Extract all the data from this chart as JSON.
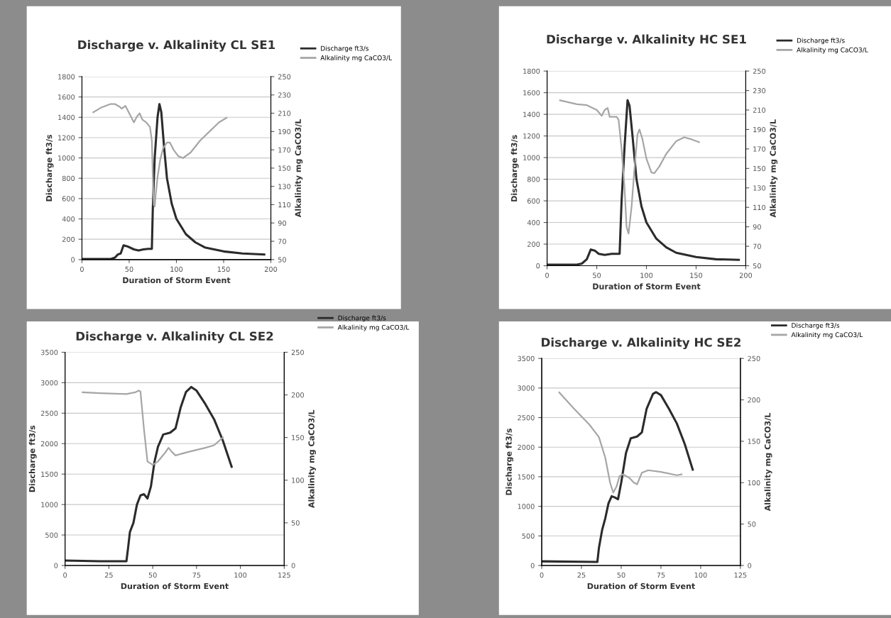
{
  "chart_data": [
    {
      "type": "line",
      "title": "Discharge v. Alkalinity CL SE1",
      "xlabel": "Duration of Storm Event",
      "ylabel": "Discharge ft3/s",
      "y2label": "Alkalinity mg CaCO3/L",
      "xlim": [
        0,
        200
      ],
      "xticks": [
        0,
        50,
        100,
        150,
        200
      ],
      "ylim": [
        0,
        1800
      ],
      "yticks": [
        0,
        200,
        400,
        600,
        800,
        1000,
        1200,
        1400,
        1600,
        1800
      ],
      "y2lim": [
        50,
        250
      ],
      "y2ticks": [
        50,
        70,
        90,
        110,
        130,
        150,
        170,
        190,
        210,
        230,
        250
      ],
      "grid": "y",
      "legend": "top right",
      "line_style": "solid",
      "series": [
        {
          "name": "Discharge ft3/s",
          "color": "#2b2b2b",
          "x": [
            0,
            30,
            35,
            38,
            41,
            44,
            48,
            55,
            60,
            65,
            70,
            74,
            75,
            77,
            80,
            82,
            84,
            87,
            90,
            95,
            100,
            110,
            120,
            130,
            150,
            170,
            193
          ],
          "values": [
            5,
            5,
            20,
            50,
            60,
            140,
            130,
            100,
            90,
            100,
            105,
            105,
            500,
            1000,
            1400,
            1530,
            1450,
            1100,
            800,
            550,
            400,
            250,
            170,
            120,
            80,
            60,
            50
          ]
        },
        {
          "name": "Alkalinity mg CaCO3/L",
          "color": "#a6a6a6",
          "axis": "y2",
          "x": [
            12,
            20,
            30,
            35,
            40,
            42,
            46,
            50,
            55,
            58,
            61,
            64,
            68,
            72,
            74,
            75,
            76,
            77,
            78,
            80,
            83,
            86,
            90,
            93,
            97,
            102,
            107,
            115,
            125,
            135,
            145,
            153
          ],
          "values": [
            211,
            216,
            220,
            220,
            217,
            215,
            218,
            210,
            200,
            206,
            210,
            203,
            200,
            195,
            180,
            140,
            110,
            108,
            120,
            140,
            160,
            172,
            178,
            178,
            170,
            163,
            161,
            167,
            180,
            190,
            200,
            205
          ]
        }
      ]
    },
    {
      "type": "line",
      "title": "Discharge v. Alkalinity HC SE1",
      "xlabel": "Duration of Storm Event",
      "ylabel": "Discharge ft3/s",
      "y2label": "Alkalinity mg CaCO3/L",
      "xlim": [
        0,
        200
      ],
      "xticks": [
        0,
        50,
        100,
        150,
        200
      ],
      "ylim": [
        0,
        1800
      ],
      "yticks": [
        0,
        200,
        400,
        600,
        800,
        1000,
        1200,
        1400,
        1600,
        1800
      ],
      "y2lim": [
        50,
        250
      ],
      "y2ticks": [
        50,
        70,
        90,
        110,
        130,
        150,
        170,
        190,
        210,
        230,
        250
      ],
      "grid": "y",
      "legend": "top right",
      "line_style": "solid",
      "series": [
        {
          "name": "Discharge ft3/s",
          "color": "#2b2b2b",
          "x": [
            0,
            30,
            35,
            40,
            44,
            48,
            52,
            58,
            65,
            73,
            75,
            78,
            81,
            83,
            86,
            90,
            95,
            100,
            110,
            120,
            130,
            150,
            170,
            193
          ],
          "values": [
            10,
            10,
            20,
            60,
            150,
            140,
            110,
            100,
            110,
            110,
            600,
            1100,
            1530,
            1480,
            1200,
            800,
            550,
            400,
            250,
            170,
            120,
            80,
            60,
            55
          ]
        },
        {
          "name": "Alkalinity mg CaCO3/L",
          "color": "#a6a6a6",
          "axis": "y2",
          "x": [
            13,
            30,
            40,
            50,
            55,
            58,
            61,
            63,
            70,
            72,
            75,
            78,
            80,
            82,
            85,
            88,
            91,
            93,
            96,
            100,
            105,
            108,
            113,
            120,
            130,
            138,
            145,
            153
          ],
          "values": [
            220,
            216,
            215,
            210,
            204,
            210,
            212,
            203,
            203,
            200,
            170,
            130,
            90,
            83,
            110,
            150,
            185,
            190,
            180,
            160,
            146,
            145,
            152,
            165,
            178,
            182,
            180,
            177
          ]
        }
      ]
    },
    {
      "type": "line",
      "title": "Discharge v. Alkalinity CL SE2",
      "xlabel": "Duration of Storm Event",
      "ylabel": "Discharge ft3/s",
      "y2label": "Alkalinity mg CaCO3/L",
      "xlim": [
        0,
        125
      ],
      "xticks": [
        0,
        25,
        50,
        75,
        100,
        125
      ],
      "ylim": [
        0,
        3500
      ],
      "yticks": [
        0,
        500,
        1000,
        1500,
        2000,
        2500,
        3000,
        3500
      ],
      "y2lim": [
        0,
        250
      ],
      "y2ticks": [
        0,
        50,
        100,
        150,
        200,
        250
      ],
      "grid": "y",
      "legend": "top right",
      "line_style": "solid",
      "series": [
        {
          "name": "Discharge ft3/s",
          "color": "#2b2b2b",
          "x": [
            0,
            20,
            35,
            36,
            37,
            39,
            41,
            43,
            45,
            47,
            49,
            51,
            53,
            56,
            60,
            63,
            66,
            69,
            72,
            75,
            80,
            85,
            90,
            95
          ],
          "values": [
            80,
            70,
            70,
            300,
            550,
            700,
            1000,
            1150,
            1170,
            1100,
            1300,
            1700,
            1950,
            2150,
            2180,
            2250,
            2600,
            2850,
            2930,
            2870,
            2650,
            2400,
            2050,
            1620
          ]
        },
        {
          "name": "Alkalinity mg CaCO3/L",
          "color": "#a6a6a6",
          "axis": "y2",
          "x": [
            10,
            20,
            35,
            40,
            42,
            43,
            45,
            47,
            50,
            53,
            57,
            59,
            61,
            63,
            70,
            80,
            85,
            90
          ],
          "values": [
            203,
            202,
            201,
            203,
            205,
            204,
            160,
            122,
            118,
            122,
            132,
            138,
            133,
            129,
            133,
            138,
            141,
            150
          ]
        }
      ]
    },
    {
      "type": "line",
      "title": "Discharge v. Alkalinity HC SE2",
      "xlabel": "Duration of Storm Event",
      "ylabel": "Discharge ft3/s",
      "y2label": "Alkalinity mg CaCO3/L",
      "xlim": [
        0,
        125
      ],
      "xticks": [
        0,
        25,
        50,
        75,
        100,
        125
      ],
      "ylim": [
        0,
        3500
      ],
      "yticks": [
        0,
        500,
        1000,
        1500,
        2000,
        2500,
        3000,
        3500
      ],
      "y2lim": [
        0,
        250
      ],
      "y2ticks": [
        0,
        50,
        100,
        150,
        200,
        250
      ],
      "grid": "y",
      "legend": "top right",
      "line_style": "solid",
      "series": [
        {
          "name": "Discharge ft3/s",
          "color": "#2b2b2b",
          "x": [
            0,
            35,
            36,
            38,
            40,
            42,
            44,
            46,
            48,
            50,
            53,
            56,
            60,
            63,
            66,
            70,
            72,
            75,
            80,
            85,
            90,
            95
          ],
          "values": [
            70,
            60,
            300,
            600,
            800,
            1050,
            1170,
            1150,
            1120,
            1400,
            1900,
            2150,
            2180,
            2250,
            2650,
            2900,
            2930,
            2880,
            2650,
            2400,
            2050,
            1620
          ]
        },
        {
          "name": "Alkalinity mg CaCO3/L",
          "color": "#a6a6a6",
          "axis": "y2",
          "x": [
            11,
            20,
            30,
            36,
            40,
            43,
            45,
            47,
            49,
            51,
            55,
            58,
            60,
            63,
            67,
            75,
            85,
            88
          ],
          "values": [
            209,
            190,
            170,
            155,
            130,
            100,
            88,
            95,
            108,
            110,
            106,
            100,
            98,
            112,
            115,
            113,
            109,
            110
          ]
        }
      ]
    }
  ]
}
